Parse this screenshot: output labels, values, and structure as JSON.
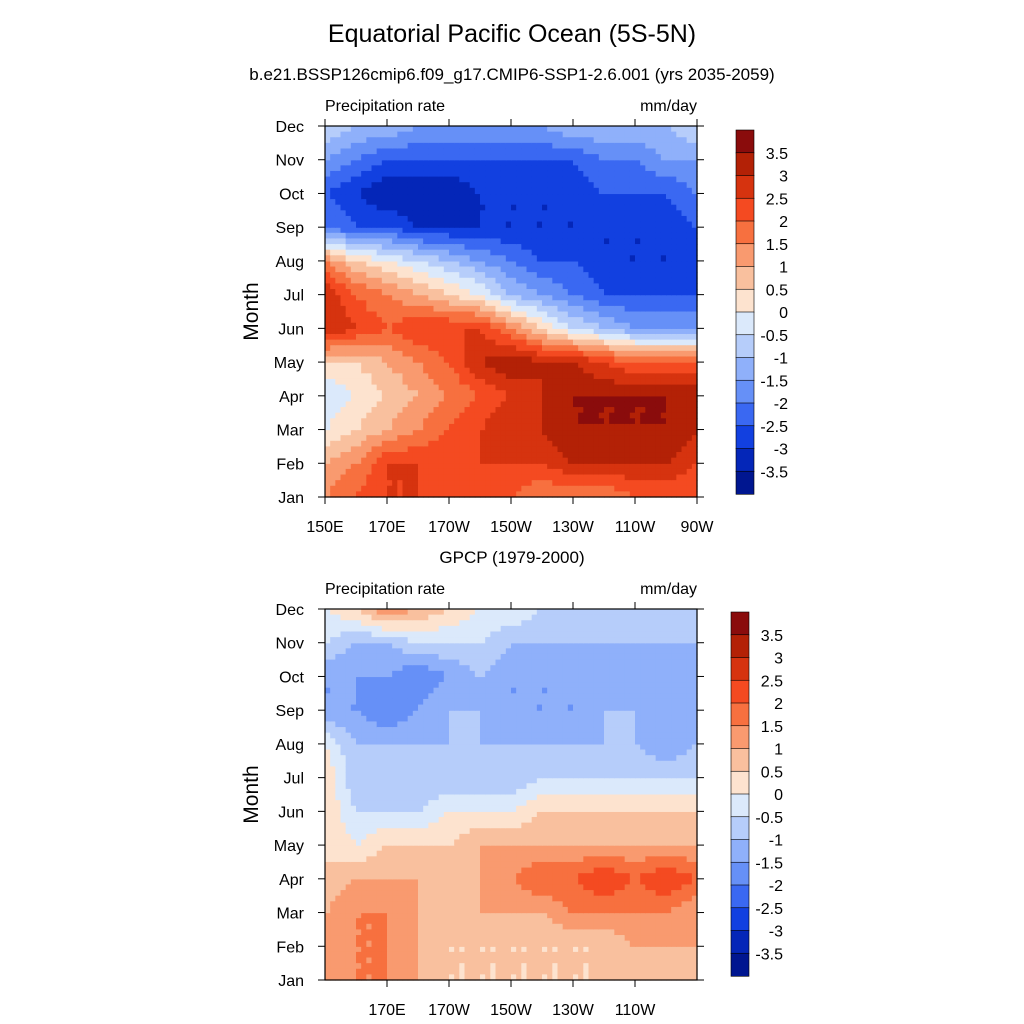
{
  "title": "Equatorial Pacific Ocean (5S-5N)",
  "subtitle": "b.e21.BSSP126cmip6.f09_g17.CMIP6-SSP1-2.6.001 (yrs 2035-2059)",
  "colormap": {
    "levels": [
      "3.5",
      "3",
      "2.5",
      "2",
      "1.5",
      "1",
      "0.5",
      "0",
      "-0.5",
      "-1",
      "-1.5",
      "-2",
      "-2.5",
      "-3",
      "-3.5"
    ],
    "colors": [
      "#8a0c0c",
      "#b32106",
      "#d6330f",
      "#f44a21",
      "#f7703f",
      "#f99a6f",
      "#f9c09e",
      "#fde3cf",
      "#dbe9fb",
      "#b6cdfa",
      "#8fb0fa",
      "#6690f7",
      "#3a68f2",
      "#1240e0",
      "#0426b8",
      "#001690"
    ]
  },
  "chart_data": [
    {
      "type": "heatmap",
      "title": "",
      "left_label": "Precipitation rate",
      "right_label": "mm/day",
      "xlabel": "",
      "ylabel": "Month",
      "x": [
        150,
        160,
        170,
        180,
        190,
        200,
        210,
        220,
        230,
        240,
        250,
        260,
        270
      ],
      "xlim": [
        150,
        270
      ],
      "xticks": [
        150,
        170,
        190,
        210,
        230,
        250,
        270
      ],
      "xtick_labels": [
        "150E",
        "170E",
        "170W",
        "150W",
        "130W",
        "110W",
        "90W"
      ],
      "months": [
        "Jan",
        "Feb",
        "Mar",
        "Apr",
        "May",
        "Jun",
        "Jul",
        "Aug",
        "Sep",
        "Oct",
        "Nov",
        "Dec"
      ],
      "values": [
        [
          1.5,
          2.0,
          2.5,
          2.5,
          2.0,
          2.0,
          2.0,
          1.5,
          1.5,
          1.5,
          2.0,
          2.0,
          2.0
        ],
        [
          1.0,
          1.5,
          2.5,
          2.5,
          2.5,
          2.5,
          2.5,
          2.5,
          3.0,
          3.0,
          3.0,
          3.0,
          2.5
        ],
        [
          0.0,
          0.5,
          1.0,
          1.5,
          2.0,
          2.5,
          3.0,
          3.0,
          3.5,
          3.5,
          3.5,
          3.5,
          3.0
        ],
        [
          -0.5,
          0.0,
          0.5,
          1.0,
          1.5,
          2.0,
          2.5,
          3.0,
          3.5,
          3.5,
          3.5,
          3.5,
          3.5
        ],
        [
          0.5,
          0.5,
          1.0,
          1.5,
          2.0,
          3.0,
          3.5,
          3.0,
          3.0,
          2.5,
          2.0,
          2.0,
          2.0
        ],
        [
          3.0,
          2.5,
          2.0,
          2.5,
          2.5,
          2.5,
          1.5,
          0.5,
          -0.5,
          -1.0,
          -1.5,
          -1.5,
          -1.5
        ],
        [
          3.0,
          2.0,
          1.5,
          1.0,
          0.5,
          0.0,
          -1.0,
          -1.5,
          -2.0,
          -2.5,
          -2.5,
          -2.5,
          -2.5
        ],
        [
          1.5,
          0.5,
          0.0,
          -0.5,
          -1.0,
          -1.5,
          -2.0,
          -2.5,
          -2.5,
          -3.0,
          -3.0,
          -3.0,
          -3.0
        ],
        [
          -2.0,
          -2.5,
          -2.5,
          -3.0,
          -3.0,
          -3.0,
          -3.0,
          -3.0,
          -3.0,
          -3.0,
          -3.0,
          -3.0,
          -2.5
        ],
        [
          -2.5,
          -3.0,
          -3.5,
          -3.5,
          -3.5,
          -3.0,
          -3.0,
          -3.0,
          -3.0,
          -2.5,
          -2.5,
          -2.5,
          -2.0
        ],
        [
          -1.5,
          -2.0,
          -2.5,
          -2.5,
          -2.5,
          -2.5,
          -2.5,
          -2.5,
          -2.5,
          -2.0,
          -2.0,
          -1.5,
          -1.5
        ],
        [
          -0.5,
          -1.0,
          -1.0,
          -1.5,
          -1.5,
          -1.5,
          -1.5,
          -1.5,
          -1.0,
          -1.0,
          -1.0,
          -1.0,
          -0.5
        ]
      ]
    },
    {
      "type": "heatmap",
      "title": "GPCP (1979-2000)",
      "left_label": "Precipitation rate",
      "right_label": "mm/day",
      "xlabel": "",
      "ylabel": "Month",
      "x": [
        150,
        160,
        170,
        180,
        190,
        200,
        210,
        220,
        230,
        240,
        250,
        260,
        270
      ],
      "xlim": [
        150,
        270
      ],
      "xticks": [
        170,
        190,
        210,
        230,
        250
      ],
      "xtick_labels": [
        "170E",
        "170W",
        "150W",
        "130W",
        "110W"
      ],
      "months": [
        "Jan",
        "Feb",
        "Mar",
        "Apr",
        "May",
        "Jun",
        "Jul",
        "Aug",
        "Sep",
        "Oct",
        "Nov",
        "Dec"
      ],
      "values": [
        [
          1.0,
          1.5,
          1.5,
          1.0,
          0.5,
          0.5,
          0.5,
          0.5,
          0.5,
          0.5,
          0.5,
          0.5,
          0.5
        ],
        [
          1.0,
          1.5,
          1.5,
          1.0,
          0.5,
          0.5,
          0.5,
          0.5,
          0.5,
          0.5,
          1.0,
          1.0,
          1.0
        ],
        [
          1.0,
          1.5,
          1.5,
          1.0,
          0.5,
          1.0,
          1.0,
          1.0,
          1.5,
          1.5,
          1.5,
          1.5,
          1.0
        ],
        [
          0.5,
          1.0,
          1.0,
          1.0,
          1.0,
          1.0,
          1.5,
          2.0,
          2.0,
          2.5,
          2.0,
          2.5,
          2.0
        ],
        [
          0.5,
          0.0,
          0.5,
          0.5,
          0.5,
          1.0,
          1.0,
          1.0,
          1.0,
          1.0,
          1.0,
          1.0,
          1.0
        ],
        [
          0.5,
          -0.5,
          -0.5,
          -0.5,
          0.0,
          0.0,
          0.0,
          0.5,
          0.5,
          0.5,
          0.5,
          0.5,
          0.5
        ],
        [
          0.5,
          -1.0,
          -1.0,
          -1.0,
          -1.0,
          -1.0,
          -1.0,
          -0.5,
          -0.5,
          -0.5,
          -0.5,
          -0.5,
          -0.5
        ],
        [
          0.0,
          -1.0,
          -1.0,
          -1.0,
          -1.0,
          -1.0,
          -1.0,
          -1.0,
          -1.0,
          -1.0,
          -1.0,
          -1.5,
          -1.0
        ],
        [
          -1.5,
          -1.5,
          -2.0,
          -1.5,
          -1.0,
          -1.0,
          -1.5,
          -1.5,
          -1.5,
          -1.0,
          -1.0,
          -1.5,
          -1.0
        ],
        [
          -1.5,
          -1.5,
          -1.5,
          -2.0,
          -1.5,
          -1.0,
          -1.5,
          -1.5,
          -1.5,
          -1.5,
          -1.0,
          -1.5,
          -1.0
        ],
        [
          -0.5,
          -1.0,
          -1.0,
          -0.5,
          -0.5,
          -0.5,
          -1.0,
          -1.0,
          -1.0,
          -1.0,
          -1.0,
          -1.0,
          -1.0
        ],
        [
          0.0,
          0.5,
          1.5,
          1.0,
          0.5,
          0.0,
          0.0,
          -0.5,
          -0.5,
          -0.5,
          -0.5,
          -0.5,
          -0.5
        ]
      ]
    }
  ]
}
